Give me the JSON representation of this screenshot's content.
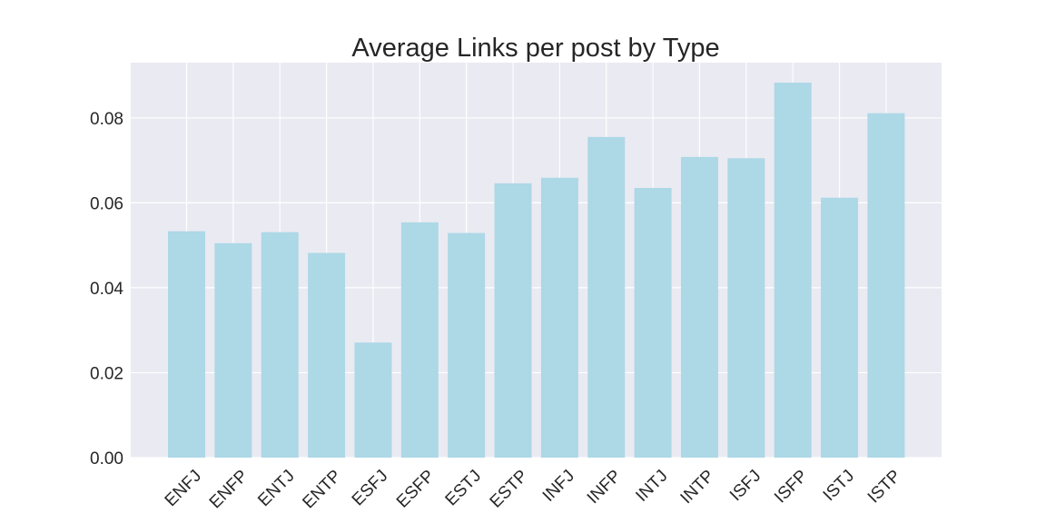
{
  "chart_data": {
    "type": "bar",
    "title": "Average Links per post by Type",
    "xlabel": "",
    "ylabel": "",
    "categories": [
      "ENFJ",
      "ENFP",
      "ENTJ",
      "ENTP",
      "ESFJ",
      "ESFP",
      "ESTJ",
      "ESTP",
      "INFJ",
      "INFP",
      "INTJ",
      "INTP",
      "ISFJ",
      "ISFP",
      "ISTJ",
      "ISTP"
    ],
    "values": [
      0.0533,
      0.0505,
      0.0531,
      0.0482,
      0.0271,
      0.0554,
      0.0529,
      0.0646,
      0.0659,
      0.0755,
      0.0635,
      0.0708,
      0.0705,
      0.0883,
      0.0612,
      0.0811
    ],
    "ylim": [
      0,
      0.093
    ],
    "yticks": [
      0.0,
      0.02,
      0.04,
      0.06,
      0.08
    ],
    "ytick_labels": [
      "0.00",
      "0.02",
      "0.04",
      "0.06",
      "0.08"
    ],
    "grid": true,
    "bar_color": "#add8e6",
    "background_color": "#eaeaf2"
  }
}
